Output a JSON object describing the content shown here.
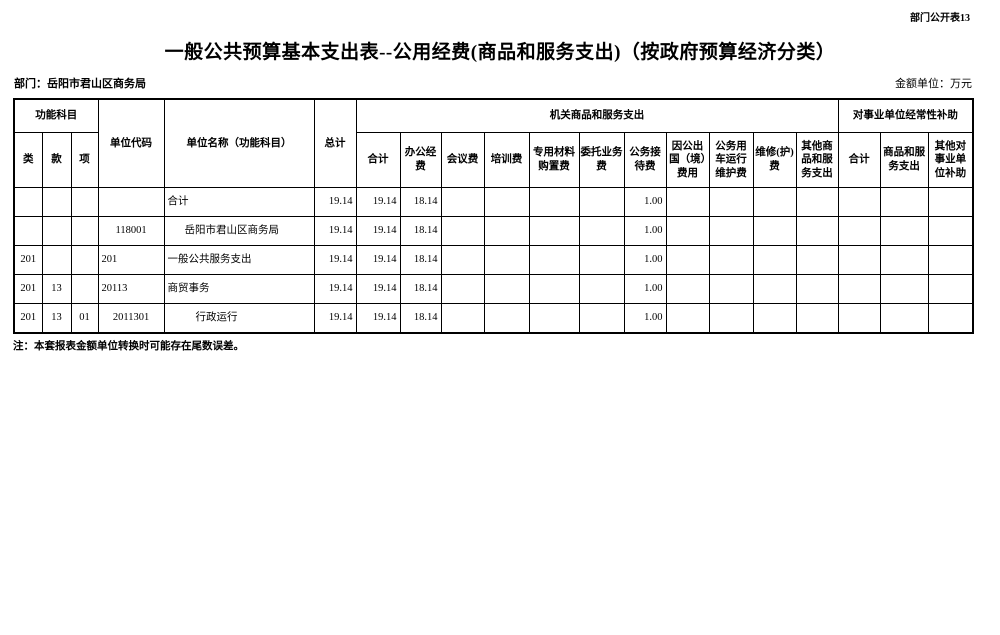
{
  "meta": {
    "table_tag": "部门公开表13",
    "title": "一般公共预算基本支出表--公用经费(商品和服务支出)（按政府预算经济分类）",
    "department_label": "部门：",
    "department": "岳阳市君山区商务局",
    "unit_label": "金额单位：",
    "unit": "万元",
    "note": "注：本套报表金额单位转换时可能存在尾数误差。"
  },
  "table": {
    "header": {
      "func_group": "功能科目",
      "func_cols": [
        "类",
        "款",
        "项"
      ],
      "unit_code": "单位代码",
      "unit_name": "单位名称（功能科目）",
      "total": "总计",
      "group1": "机关商品和服务支出",
      "group1_cols": [
        "合计",
        "办公经费",
        "会议费",
        "培训费",
        "专用材料购置费",
        "委托业务费",
        "公务接待费",
        "因公出国（境）费用",
        "公务用车运行维护费",
        "维修(护)费",
        "其他商品和服务支出"
      ],
      "group2": "对事业单位经常性补助",
      "group2_cols": [
        "合计",
        "商品和服务支出",
        "其他对事业单位补助"
      ]
    },
    "rows": [
      {
        "cls": "",
        "sec": "",
        "itm": "",
        "code": "",
        "code_align": "left",
        "name": "合计",
        "indent": 0,
        "vals": [
          "19.14",
          "19.14",
          "18.14",
          "",
          "",
          "",
          "",
          "1.00",
          "",
          "",
          "",
          "",
          "",
          "",
          ""
        ]
      },
      {
        "cls": "",
        "sec": "",
        "itm": "",
        "code": "118001",
        "code_align": "center",
        "name": "岳阳市君山区商务局",
        "indent": 1,
        "vals": [
          "19.14",
          "19.14",
          "18.14",
          "",
          "",
          "",
          "",
          "1.00",
          "",
          "",
          "",
          "",
          "",
          "",
          ""
        ]
      },
      {
        "cls": "201",
        "sec": "",
        "itm": "",
        "code": "201",
        "code_align": "left",
        "name": "一般公共服务支出",
        "indent": 0,
        "vals": [
          "19.14",
          "19.14",
          "18.14",
          "",
          "",
          "",
          "",
          "1.00",
          "",
          "",
          "",
          "",
          "",
          "",
          ""
        ]
      },
      {
        "cls": "201",
        "sec": "13",
        "itm": "",
        "code": "20113",
        "code_align": "left",
        "name": "商贸事务",
        "indent": 0,
        "vals": [
          "19.14",
          "19.14",
          "18.14",
          "",
          "",
          "",
          "",
          "1.00",
          "",
          "",
          "",
          "",
          "",
          "",
          ""
        ]
      },
      {
        "cls": "201",
        "sec": "13",
        "itm": "01",
        "code": "2011301",
        "code_align": "center",
        "name": "行政运行",
        "indent": 2,
        "vals": [
          "19.14",
          "19.14",
          "18.14",
          "",
          "",
          "",
          "",
          "1.00",
          "",
          "",
          "",
          "",
          "",
          "",
          ""
        ]
      }
    ]
  }
}
